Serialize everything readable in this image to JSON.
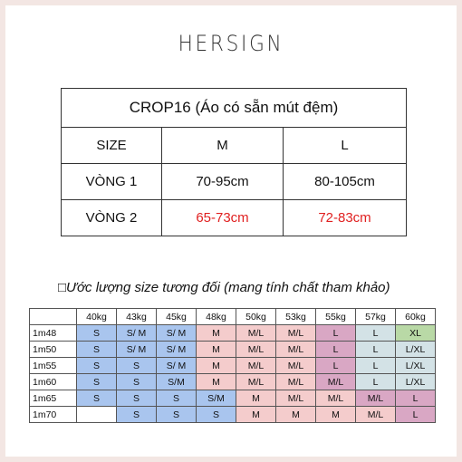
{
  "logo": "HERSIGN",
  "size_table": {
    "title": "CROP16 (Áo có sẵn mút đệm)",
    "header": [
      "SIZE",
      "M",
      "L"
    ],
    "rows": [
      [
        "VÒNG 1",
        "70-95cm",
        "80-105cm"
      ],
      [
        "VÒNG 2",
        "65-73cm",
        "72-83cm"
      ]
    ],
    "highlight_row": 1,
    "highlight_color": "#e02020"
  },
  "estimate": {
    "caption": "□Ước lượng size tương đối (mang tính chất tham khảo)",
    "columns": [
      "40kg",
      "43kg",
      "45kg",
      "48kg",
      "50kg",
      "53kg",
      "55kg",
      "57kg",
      "60kg"
    ],
    "rows": [
      {
        "height": "1m48",
        "cells": [
          "S",
          "S/ M",
          "S/ M",
          "M",
          "M/L",
          "M/L",
          "L",
          "L",
          "XL"
        ],
        "fills": "bbbpppmcg"
      },
      {
        "height": "1m50",
        "cells": [
          "S",
          "S/ M",
          "S/ M",
          "M",
          "M/L",
          "M/L",
          "L",
          "L",
          "L/XL"
        ],
        "fills": "bbbpppmcc"
      },
      {
        "height": "1m55",
        "cells": [
          "S",
          "S",
          "S/ M",
          "M",
          "M/L",
          "M/L",
          "L",
          "L",
          "L/XL"
        ],
        "fills": "bbbpppmcc"
      },
      {
        "height": "1m60",
        "cells": [
          "S",
          "S",
          "S/M",
          "M",
          "M/L",
          "M/L",
          "M/L",
          "L",
          "L/XL"
        ],
        "fills": "bbbpppmcc"
      },
      {
        "height": "1m65",
        "cells": [
          "S",
          "S",
          "S",
          "S/M",
          "M",
          "M/L",
          "M/L",
          "M/L",
          "L"
        ],
        "fills": "bbbbpppmm"
      },
      {
        "height": "1m70",
        "cells": [
          null,
          "S",
          "S",
          "S",
          "M",
          "M",
          "M",
          "M/L",
          "L"
        ],
        "fills": "wbbbppppm"
      }
    ],
    "palette": {
      "b": "#a9c5ee",
      "p": "#f4cccc",
      "m": "#d9a7c4",
      "c": "#d3e2e6",
      "g": "#b9d9a6",
      "w": "#ffffff"
    }
  }
}
